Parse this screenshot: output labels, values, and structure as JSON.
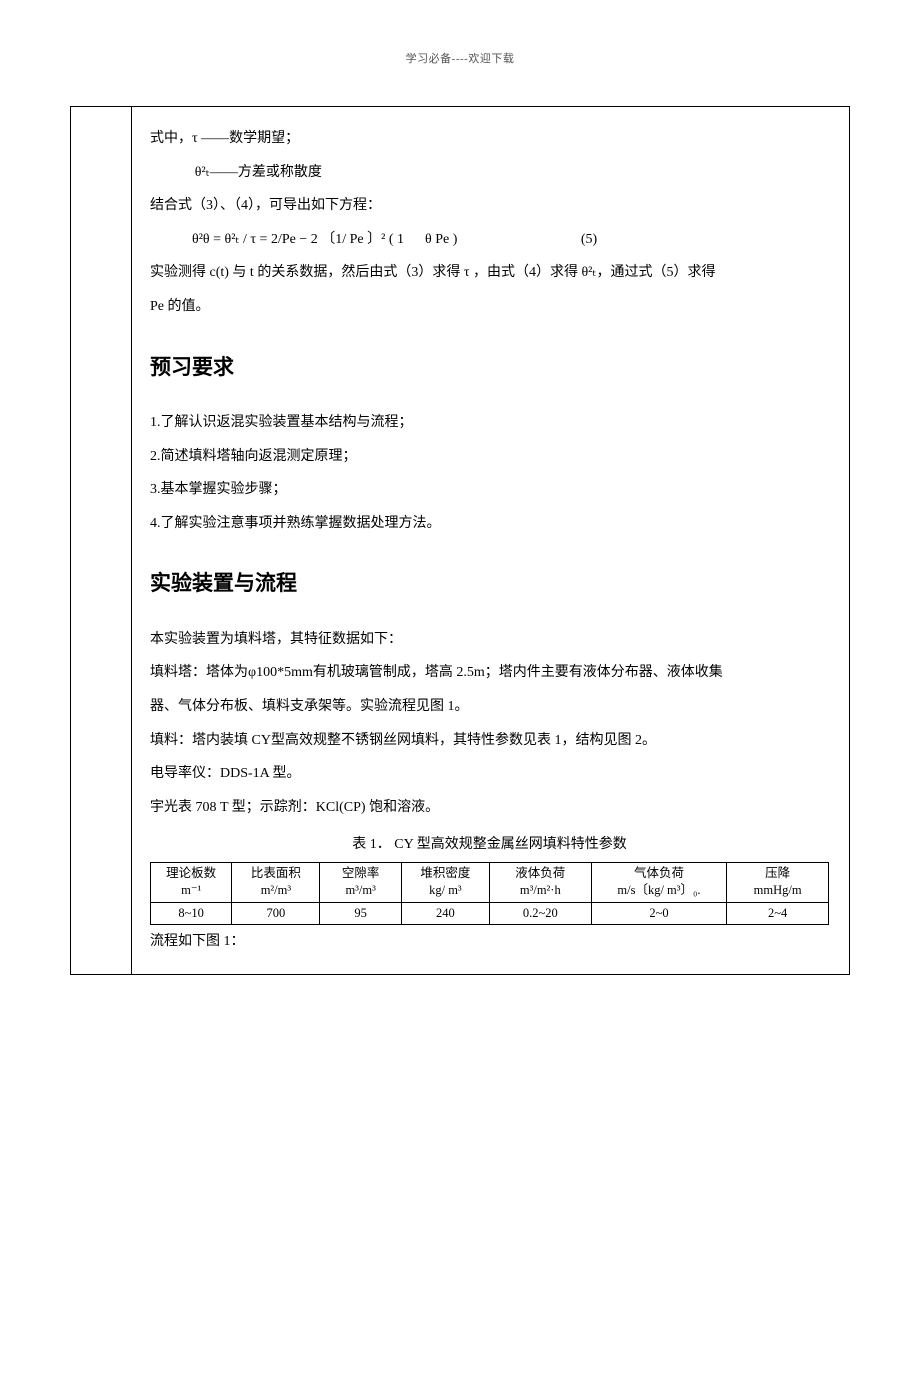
{
  "header_note": "学习必备----欢迎下载",
  "body": {
    "line1_pre": "式中，τ ——数学期望；",
    "line2": "θ²ₜ——方差或称散度",
    "line3": "结合式（3）、（4），可导出如下方程：",
    "eq5_lhs": "θ²θ = θ²ₜ / τ = 2/Pe − 2 〔1/ Pe 〕² ( 1   θ Pe )",
    "eq5_num": "(5)",
    "line5a": "实验测得 c(t) 与 t 的关系数据，然后由式（3）求得 τ ，由式（4）求得  θ²ₜ，通过式（5）求得",
    "line5b": "Pe 的值。",
    "sec1_title": "预习要求",
    "sec1_items": [
      "1.了解认识返混实验装置基本结构与流程；",
      "2.简述填料塔轴向返混测定原理；",
      "3.基本掌握实验步骤；",
      "4.了解实验注意事项并熟练掌握数据处理方法。"
    ],
    "sec2_title": "实验装置与流程",
    "sec2_p1": "本实验装置为填料塔，其特征数据如下：",
    "sec2_p2": "填料塔：塔体为φ100*5mm有机玻璃管制成，塔高 2.5m；塔内件主要有液体分布器、液体收集",
    "sec2_p3": "器、气体分布板、填料支承架等。实验流程见图 1。",
    "sec2_p4": "填料：塔内装填 CY型高效规整不锈钢丝网填料，其特性参数见表 1，结构见图 2。",
    "sec2_p5": "电导率仪：DDS-1A 型。",
    "sec2_p6": "宇光表 708 T 型；示踪剂：KCl(CP) 饱和溶液。",
    "table_caption": "表 1．  CY 型高效规整金属丝网填料特性参数",
    "table": {
      "headers": [
        {
          "l1": "理论板数",
          "l2": "m⁻¹"
        },
        {
          "l1": "比表面积",
          "l2": "m²/m³"
        },
        {
          "l1": "空隙率",
          "l2": "m³/m³"
        },
        {
          "l1": "堆积密度",
          "l2": "kg/ m³"
        },
        {
          "l1": "液体负荷",
          "l2": "m³/m²·h"
        },
        {
          "l1": "气体负荷",
          "l2": "m/s〔kg/ m³〕₀."
        },
        {
          "l1": "压降",
          "l2": "mmHg/m"
        }
      ],
      "row": [
        "8~10",
        "700",
        "95",
        "240",
        "0.2~20",
        "2~0",
        "2~4"
      ],
      "col_widths": [
        "12%",
        "13%",
        "12%",
        "13%",
        "15%",
        "20%",
        "15%"
      ]
    },
    "final_line": "流程如下图 1："
  }
}
